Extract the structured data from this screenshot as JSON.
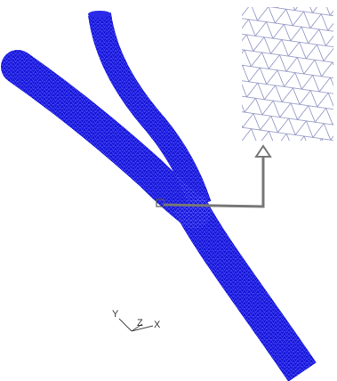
{
  "triad": {
    "y": "Y",
    "z": "Z",
    "x": "X"
  }
}
